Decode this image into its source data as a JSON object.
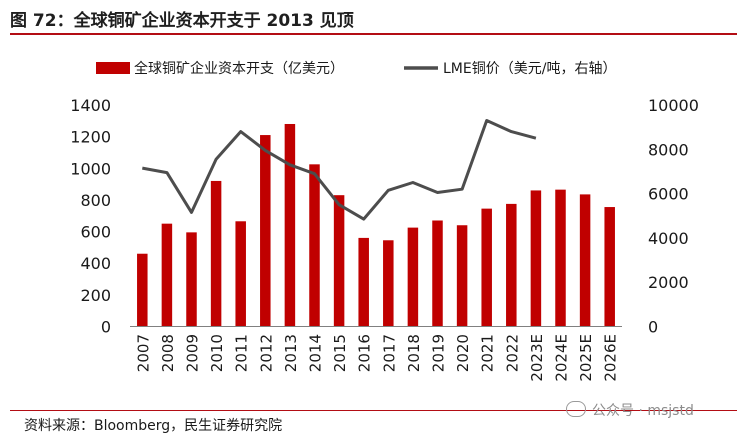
{
  "title": "图 72：全球铜矿企业资本开支于 2013 见顶",
  "source": "资料来源：Bloomberg，民生证券研究院",
  "watermark": "公众号 · msjstd",
  "colors": {
    "bar": "#c00000",
    "line": "#4d4d4d",
    "accent": "#b30d14"
  },
  "chart_data": {
    "type": "bar+line",
    "categories": [
      "2007",
      "2008",
      "2009",
      "2010",
      "2011",
      "2012",
      "2013",
      "2014",
      "2015",
      "2016",
      "2017",
      "2018",
      "2019",
      "2020",
      "2021",
      "2022",
      "2023E",
      "2024E",
      "2025E",
      "2026E"
    ],
    "series": [
      {
        "name": "全球铜矿企业资本开支（亿美元）",
        "type": "bar",
        "axis": "left",
        "values": [
          460,
          650,
          595,
          920,
          665,
          1210,
          1280,
          1025,
          830,
          560,
          545,
          625,
          670,
          640,
          745,
          775,
          860,
          865,
          835,
          755
        ]
      },
      {
        "name": "LME铜价（美元/吨，右轴）",
        "type": "line",
        "axis": "right",
        "values": [
          7150,
          6950,
          5150,
          7550,
          8800,
          7950,
          7300,
          6900,
          5500,
          4850,
          6150,
          6500,
          6050,
          6200,
          9300,
          8800,
          8500,
          null,
          null,
          null
        ]
      }
    ],
    "left_axis": {
      "min": 0,
      "max": 1400,
      "ticks": [
        0,
        200,
        400,
        600,
        800,
        1000,
        1200,
        1400
      ]
    },
    "right_axis": {
      "min": 0,
      "max": 10000,
      "ticks": [
        0,
        2000,
        4000,
        6000,
        8000,
        10000
      ]
    },
    "legend_position": "top",
    "grid": false
  }
}
